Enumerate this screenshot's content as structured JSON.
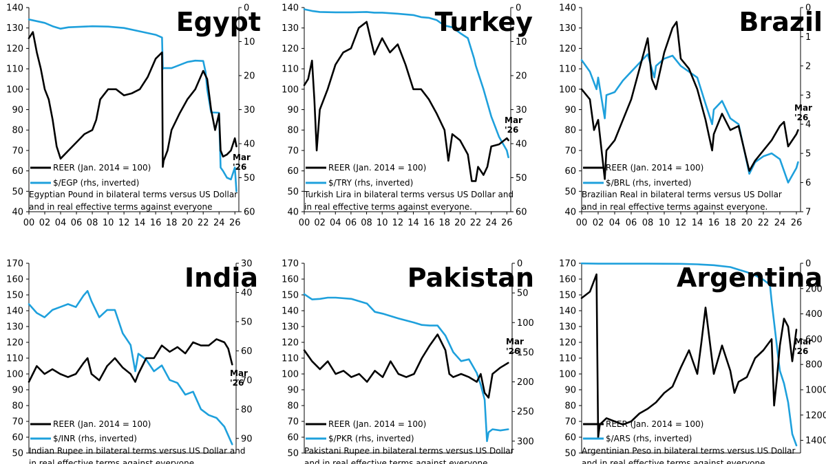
{
  "colors": {
    "reer": "#000000",
    "fx": "#1ea0dc"
  },
  "legend": {
    "reer_label": "REER (Jan. 2014 = 100)"
  },
  "chart_data": [
    {
      "type": "line",
      "title": "Egypt",
      "caption": [
        "Egyptian Pound in bilateral terms versus US Dollar",
        "and in real effective terms against everyone"
      ],
      "annotation": [
        "Mar",
        "'26"
      ],
      "xlim": [
        2000,
        2026.5
      ],
      "xticks": [
        "00",
        "02",
        "04",
        "06",
        "08",
        "10",
        "12",
        "14",
        "16",
        "18",
        "20",
        "22",
        "24",
        "26"
      ],
      "ylim": [
        40,
        140
      ],
      "yticks": [
        40,
        50,
        60,
        70,
        80,
        90,
        100,
        110,
        120,
        130,
        140
      ],
      "y2lim": [
        0,
        60
      ],
      "y2ticks": [
        0,
        10,
        20,
        30,
        40,
        50,
        60
      ],
      "series": [
        {
          "name": "REER (Jan. 2014 = 100)",
          "axis": "left",
          "x": [
            2000,
            2000.5,
            2001,
            2001.5,
            2002,
            2002.5,
            2003,
            2003.5,
            2004,
            2004.5,
            2005,
            2006,
            2007,
            2008,
            2008.5,
            2009,
            2010,
            2011,
            2012,
            2013,
            2014,
            2015,
            2016,
            2016.8,
            2016.9,
            2017,
            2017.5,
            2018,
            2019,
            2020,
            2021,
            2022,
            2022.5,
            2023,
            2023.5,
            2024,
            2024.2,
            2024.5,
            2025,
            2025.5,
            2026,
            2026.2
          ],
          "y": [
            125,
            128,
            118,
            110,
            100,
            95,
            85,
            72,
            66,
            68,
            70,
            74,
            78,
            80,
            85,
            95,
            100,
            100,
            97,
            98,
            100,
            106,
            115,
            118,
            62,
            65,
            70,
            80,
            88,
            95,
            100,
            109,
            105,
            90,
            80,
            88,
            70,
            67,
            68,
            70,
            76,
            72
          ]
        },
        {
          "name": "$/EGP (rhs, inverted)",
          "axis": "right",
          "x": [
            2000,
            2001,
            2002,
            2003,
            2004,
            2005,
            2006,
            2008,
            2010,
            2012,
            2014,
            2016,
            2016.8,
            2016.9,
            2017,
            2018,
            2020,
            2021,
            2022,
            2022.3,
            2022.5,
            2023,
            2024,
            2024.2,
            2024.5,
            2025,
            2025.5,
            2026,
            2026.2
          ],
          "y": [
            3.5,
            4,
            4.5,
            5.5,
            6.2,
            5.8,
            5.7,
            5.5,
            5.6,
            6,
            7,
            8,
            8.8,
            18,
            17.8,
            17.8,
            16,
            15.6,
            15.7,
            19,
            24,
            30.8,
            30.9,
            47,
            48,
            50,
            50.5,
            47,
            54
          ]
        }
      ]
    },
    {
      "type": "line",
      "title": "Turkey",
      "caption": [
        "Turkish Lira in bilateral terms versus US Dollar and",
        "in real effective terms against everyone."
      ],
      "annotation": [
        "Mar",
        "'26"
      ],
      "xlim": [
        2000,
        2026.5
      ],
      "xticks": [
        "00",
        "02",
        "04",
        "06",
        "08",
        "10",
        "12",
        "14",
        "16",
        "18",
        "20",
        "22",
        "24",
        "26"
      ],
      "ylim": [
        40,
        140
      ],
      "yticks": [
        40,
        50,
        60,
        70,
        80,
        90,
        100,
        110,
        120,
        130,
        140
      ],
      "y2lim": [
        0,
        60
      ],
      "y2ticks": [
        0,
        10,
        20,
        30,
        40,
        50,
        60
      ],
      "series": [
        {
          "name": "REER (Jan. 2014 = 100)",
          "axis": "left",
          "x": [
            2000,
            2000.5,
            2001,
            2001.3,
            2001.6,
            2002,
            2003,
            2004,
            2005,
            2006,
            2007,
            2008,
            2008.5,
            2009,
            2010,
            2011,
            2012,
            2013,
            2014,
            2015,
            2016,
            2017,
            2018,
            2018.5,
            2019,
            2020,
            2021,
            2021.5,
            2022,
            2022.3,
            2023,
            2023.5,
            2024,
            2025,
            2026,
            2026.2
          ],
          "y": [
            102,
            105,
            114,
            95,
            70,
            90,
            100,
            112,
            118,
            120,
            130,
            133,
            125,
            117,
            125,
            118,
            122,
            112,
            100,
            100,
            95,
            88,
            80,
            65,
            78,
            75,
            68,
            55,
            55,
            62,
            58,
            62,
            72,
            73,
            76,
            75
          ]
        },
        {
          "name": "$/TRY (rhs, inverted)",
          "axis": "right",
          "x": [
            2000,
            2001,
            2002,
            2004,
            2006,
            2008,
            2009,
            2010,
            2012,
            2014,
            2015,
            2016,
            2017,
            2018,
            2019,
            2020,
            2021,
            2021.8,
            2022,
            2023,
            2024,
            2025,
            2026,
            2026.2
          ],
          "y": [
            0.5,
            1,
            1.3,
            1.4,
            1.4,
            1.3,
            1.5,
            1.5,
            1.8,
            2.2,
            2.8,
            3,
            3.7,
            5.3,
            5.8,
            7.5,
            9,
            15,
            17,
            24,
            32,
            38,
            42,
            44
          ]
        }
      ]
    },
    {
      "type": "line",
      "title": "Brazil",
      "caption": [
        "Brazilian Real in bilateral terms versus US Dollar",
        "and in real effective terms against everyone."
      ],
      "annotation": [
        "Mar",
        "'26"
      ],
      "xlim": [
        2000,
        2026.5
      ],
      "xticks": [
        "00",
        "02",
        "04",
        "06",
        "08",
        "10",
        "12",
        "14",
        "16",
        "18",
        "20",
        "22",
        "24",
        "26"
      ],
      "ylim": [
        40,
        140
      ],
      "yticks": [
        40,
        50,
        60,
        70,
        80,
        90,
        100,
        110,
        120,
        130,
        140
      ],
      "y2lim": [
        0,
        7
      ],
      "y2ticks": [
        0,
        1,
        2,
        3,
        4,
        5,
        6,
        7
      ],
      "series": [
        {
          "name": "REER (Jan. 2014 = 100)",
          "axis": "left",
          "x": [
            2000,
            2001,
            2001.5,
            2002,
            2002.8,
            2003,
            2004,
            2005,
            2006,
            2007,
            2008,
            2008.5,
            2009,
            2010,
            2011,
            2011.5,
            2012,
            2013,
            2014,
            2015,
            2015.8,
            2016,
            2017,
            2018,
            2019,
            2020,
            2020.3,
            2021,
            2022,
            2023,
            2024,
            2024.5,
            2025,
            2026,
            2026.2
          ],
          "y": [
            100,
            95,
            80,
            85,
            56,
            70,
            75,
            85,
            95,
            110,
            125,
            105,
            100,
            118,
            130,
            133,
            115,
            110,
            100,
            85,
            70,
            78,
            88,
            80,
            82,
            65,
            60,
            65,
            70,
            75,
            82,
            84,
            72,
            78,
            80
          ]
        },
        {
          "name": "$/BRL (rhs, inverted)",
          "axis": "right",
          "x": [
            2000,
            2001,
            2001.8,
            2002,
            2002.8,
            2003,
            2004,
            2005,
            2006,
            2007,
            2008,
            2008.8,
            2009,
            2010,
            2011,
            2012,
            2013,
            2014,
            2015,
            2015.8,
            2016,
            2017,
            2018,
            2019,
            2020,
            2020.3,
            2021,
            2022,
            2023,
            2024,
            2024.5,
            2025,
            2026,
            2026.2
          ],
          "y": [
            1.8,
            2.2,
            2.8,
            2.4,
            3.8,
            3,
            2.9,
            2.5,
            2.2,
            1.9,
            1.6,
            2.4,
            2,
            1.75,
            1.65,
            2,
            2.2,
            2.4,
            3.3,
            4,
            3.5,
            3.2,
            3.8,
            4,
            5.3,
            5.7,
            5.3,
            5.1,
            5,
            5.2,
            5.6,
            6,
            5.5,
            5.3
          ]
        }
      ]
    },
    {
      "type": "line",
      "title": "India",
      "caption": [
        "Indian Rupee in bilateral terms versus US Dollar and",
        "in real effective terms against everyone"
      ],
      "annotation": [
        "Mar",
        "'26"
      ],
      "xlim": [
        2000,
        2026.5
      ],
      "xticks": [],
      "ylim": [
        50,
        170
      ],
      "yticks": [
        50,
        60,
        70,
        80,
        90,
        100,
        110,
        120,
        130,
        140,
        150,
        160,
        170
      ],
      "y2lim": [
        30,
        95
      ],
      "y2ticks": [
        30,
        40,
        50,
        60,
        70,
        80,
        90
      ],
      "series": [
        {
          "name": "REER (Jan. 2014 = 100)",
          "axis": "left",
          "x": [
            2000,
            2001,
            2002,
            2003,
            2004,
            2005,
            2006,
            2007,
            2007.5,
            2008,
            2009,
            2010,
            2011,
            2012,
            2013,
            2013.6,
            2014,
            2015,
            2016,
            2017,
            2018,
            2019,
            2020,
            2021,
            2022,
            2023,
            2024,
            2025,
            2025.5,
            2026
          ],
          "y": [
            95,
            105,
            100,
            103,
            100,
            98,
            100,
            107,
            110,
            100,
            96,
            105,
            110,
            104,
            100,
            95,
            100,
            110,
            110,
            118,
            114,
            117,
            113,
            120,
            118,
            118,
            122,
            120,
            116,
            106
          ]
        },
        {
          "name": "$/INR (rhs, inverted)",
          "axis": "right",
          "x": [
            2000,
            2001,
            2002,
            2003,
            2004,
            2005,
            2006,
            2007,
            2007.5,
            2008,
            2009,
            2010,
            2011,
            2012,
            2013,
            2013.6,
            2014,
            2015,
            2016,
            2017,
            2018,
            2019,
            2020,
            2021,
            2022,
            2023,
            2024,
            2025,
            2026
          ],
          "y": [
            44,
            47,
            48.5,
            46,
            45,
            44,
            45,
            41,
            39.5,
            43,
            48.5,
            46,
            46,
            54,
            58,
            67,
            61,
            63,
            67,
            65,
            70,
            71,
            75,
            74,
            80,
            82,
            83,
            86,
            92
          ]
        }
      ]
    },
    {
      "type": "line",
      "title": "Pakistan",
      "caption": [
        "Pakistani Rupee in bilateral terms versus US Dollar",
        "and in real effective terms against everyone"
      ],
      "annotation": [
        "Mar",
        "'26"
      ],
      "xlim": [
        2000,
        2026.5
      ],
      "xticks": [],
      "ylim": [
        50,
        170
      ],
      "yticks": [
        50,
        60,
        70,
        80,
        90,
        100,
        110,
        120,
        130,
        140,
        150,
        160,
        170
      ],
      "y2lim": [
        0,
        320
      ],
      "y2ticks": [
        0,
        50,
        100,
        150,
        200,
        250,
        300
      ],
      "series": [
        {
          "name": "REER (Jan. 2014 = 100)",
          "axis": "left",
          "x": [
            2000,
            2001,
            2002,
            2003,
            2004,
            2005,
            2006,
            2007,
            2008,
            2009,
            2010,
            2011,
            2012,
            2013,
            2014,
            2015,
            2016,
            2017,
            2018,
            2018.5,
            2019,
            2020,
            2021,
            2022,
            2022.5,
            2023,
            2023.5,
            2024,
            2025,
            2026
          ],
          "y": [
            115,
            108,
            103,
            108,
            100,
            102,
            98,
            100,
            95,
            102,
            98,
            108,
            100,
            98,
            100,
            110,
            118,
            125,
            115,
            100,
            98,
            100,
            98,
            95,
            100,
            88,
            85,
            100,
            104,
            107
          ]
        },
        {
          "name": "$/PKR (rhs, inverted)",
          "axis": "right",
          "x": [
            2000,
            2001,
            2002,
            2003,
            2004,
            2006,
            2008,
            2009,
            2010,
            2012,
            2014,
            2015,
            2016,
            2017,
            2018,
            2019,
            2020,
            2021,
            2022,
            2022.5,
            2023,
            2023.3,
            2023.5,
            2024,
            2025,
            2026
          ],
          "y": [
            52,
            61,
            60,
            58,
            58,
            60,
            68,
            82,
            85,
            93,
            100,
            104,
            105,
            105,
            122,
            150,
            165,
            162,
            185,
            205,
            230,
            300,
            285,
            280,
            282,
            280
          ]
        }
      ]
    },
    {
      "type": "line",
      "title": "Argentina",
      "caption": [
        "Argentinian Peso in bilateral terms versus US Dollar",
        "and in real effective terms against everyone"
      ],
      "annotation": [
        "Mar",
        "'26"
      ],
      "xlim": [
        2000,
        2026.5
      ],
      "xticks": [],
      "ylim": [
        50,
        170
      ],
      "yticks": [
        50,
        60,
        70,
        80,
        90,
        100,
        110,
        120,
        130,
        140,
        150,
        160,
        170
      ],
      "y2lim": [
        0,
        1500
      ],
      "y2ticks": [
        0,
        200,
        400,
        600,
        800,
        1000,
        1200,
        1400
      ],
      "series": [
        {
          "name": "REER (Jan. 2014 = 100)",
          "axis": "left",
          "x": [
            2000,
            2001,
            2001.8,
            2002,
            2002.2,
            2003,
            2004,
            2005,
            2006,
            2007,
            2008,
            2009,
            2010,
            2011,
            2012,
            2013,
            2014,
            2014.5,
            2015,
            2016,
            2017,
            2018,
            2018.5,
            2019,
            2020,
            2021,
            2022,
            2023,
            2023.3,
            2023.6,
            2024,
            2024.5,
            2025,
            2025.5,
            2026
          ],
          "y": [
            148,
            152,
            163,
            60,
            68,
            72,
            70,
            68,
            70,
            75,
            78,
            82,
            88,
            92,
            104,
            115,
            100,
            120,
            142,
            100,
            118,
            102,
            88,
            95,
            98,
            110,
            115,
            122,
            80,
            95,
            118,
            135,
            130,
            108,
            128
          ]
        },
        {
          "name": "$/ARS (rhs, inverted)",
          "axis": "right",
          "x": [
            2000,
            2002,
            2004,
            2008,
            2012,
            2014,
            2016,
            2018,
            2019,
            2020,
            2021,
            2022,
            2022.8,
            2023,
            2023.9,
            2024,
            2024.5,
            2025,
            2025.5,
            2026
          ],
          "y": [
            1,
            3,
            3,
            3.2,
            4.5,
            8,
            15,
            30,
            50,
            70,
            95,
            130,
            170,
            300,
            800,
            850,
            950,
            1100,
            1350,
            1440
          ]
        }
      ]
    }
  ]
}
